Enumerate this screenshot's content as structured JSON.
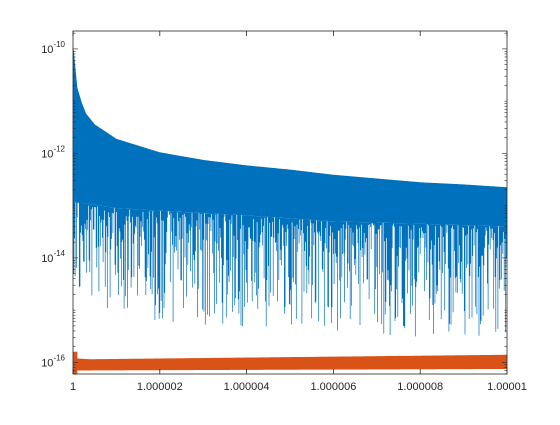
{
  "chart_data": {
    "type": "line",
    "title": "",
    "xlabel": "",
    "ylabel": "",
    "xlim": [
      1,
      1.00001
    ],
    "ylim": [
      6e-17,
      2.2e-10
    ],
    "yscale": "log",
    "grid": false,
    "legend": "none",
    "x_ticks": [
      "1",
      "1.000002",
      "1.000004",
      "1.000006",
      "1.000008",
      "1.00001"
    ],
    "x_tick_values": [
      1,
      1.000002,
      1.000004,
      1.000006,
      1.000008,
      1.00001
    ],
    "y_ticks": [
      {
        "base": "10",
        "exp": "-10",
        "value": 1e-10
      },
      {
        "base": "10",
        "exp": "-12",
        "value": 1e-12
      },
      {
        "base": "10",
        "exp": "-14",
        "value": 1e-14
      },
      {
        "base": "10",
        "exp": "-16",
        "value": 1e-16
      }
    ],
    "series": [
      {
        "color": "#0072BD",
        "style": "dense-oscillation",
        "upper_envelope": {
          "x": [
            1,
            1.0000001,
            1.0000002,
            1.0000003,
            1.0000005,
            1.000001,
            1.000002,
            1.000003,
            1.000004,
            1.000005,
            1.000006,
            1.000007,
            1.000008,
            1.000009,
            1.00001
          ],
          "y": [
            1.3e-10,
            1.8e-11,
            9.5e-12,
            5.8e-12,
            3.6e-12,
            1.9e-12,
            1.05e-12,
            7.5e-13,
            5.9e-13,
            4.9e-13,
            3.9e-13,
            3.3e-13,
            2.8e-13,
            2.55e-13,
            2.25e-13
          ]
        },
        "fill_lower": {
          "x": [
            1,
            1.0000003,
            1.000001,
            1.000002,
            1.000004,
            1.000006,
            1.000008,
            1.00001
          ],
          "y": [
            1.2e-13,
            1.1e-13,
            9e-14,
            8e-14,
            6.5e-14,
            5e-14,
            4.5e-14,
            4e-14
          ]
        },
        "min_floor": {
          "x": [
            1,
            1.000001,
            1.000002,
            1.000004,
            1.000006,
            1.000008,
            1.00001
          ],
          "y": [
            3e-15,
            8e-16,
            6e-16,
            4e-16,
            4e-16,
            3e-16,
            3e-16
          ]
        }
      },
      {
        "color": "#D95319",
        "style": "thick-band",
        "lower": {
          "x": [
            1,
            1.00001
          ],
          "y": [
            7e-17,
            7.5e-17
          ]
        },
        "upper": {
          "x": [
            1,
            1.0000004,
            1.00001
          ],
          "y": [
            1.2e-16,
            1.15e-16,
            1.4e-16
          ]
        },
        "start_spike": {
          "x": 1.0000001,
          "y": 1.6e-16
        }
      }
    ]
  }
}
